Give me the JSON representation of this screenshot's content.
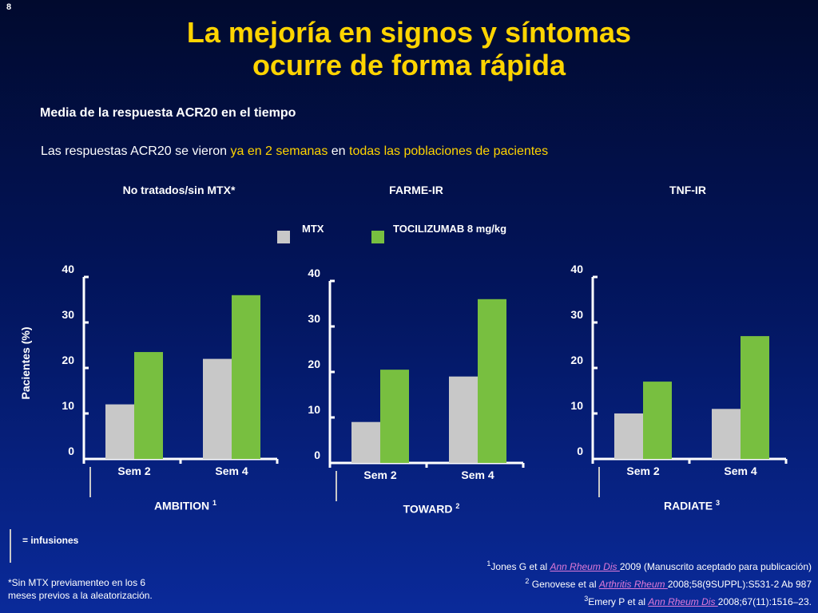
{
  "slide_number": "8",
  "title_line1": "La mejoría en signos y síntomas",
  "title_line2": "ocurre de forma rápida",
  "subtitle": "Media de la respuesta ACR20 en el tiempo",
  "note": {
    "part1": "Las respuestas ACR20 se vieron ",
    "part2": "ya en 2 semanas",
    "part3": " en ",
    "part4": "todas las poblaciones de pacientes"
  },
  "group_titles": [
    "No tratados/sin MTX*",
    "FARME-IR",
    "TNF-IR"
  ],
  "legend": [
    {
      "label": "MTX",
      "color": "#c8c8c8"
    },
    {
      "label": "TOCILIZUMAB 8 mg/kg",
      "color": "#78bf40"
    }
  ],
  "y_axis_label": "Pacientes (%)",
  "chart_data": [
    {
      "type": "bar",
      "study": "AMBITION",
      "study_sup": "1",
      "categories": [
        "Sem 2",
        "Sem 4"
      ],
      "series": [
        {
          "name": "MTX",
          "values": [
            12,
            22
          ],
          "color": "#c8c8c8"
        },
        {
          "name": "TOCILIZUMAB 8 mg/kg",
          "values": [
            23.5,
            36
          ],
          "color": "#78bf40"
        }
      ],
      "ylim": [
        0,
        40
      ],
      "yticks": [
        "0",
        "10",
        "20",
        "30",
        "40"
      ]
    },
    {
      "type": "bar",
      "study": "TOWARD",
      "study_sup": "2",
      "categories": [
        "Sem 2",
        "Sem 4"
      ],
      "series": [
        {
          "name": "MTX",
          "values": [
            9,
            19
          ],
          "color": "#c8c8c8"
        },
        {
          "name": "TOCILIZUMAB 8 mg/kg",
          "values": [
            20.5,
            36
          ],
          "color": "#78bf40"
        }
      ],
      "ylim": [
        0,
        40
      ],
      "yticks": [
        "0",
        "10",
        "20",
        "30",
        "40"
      ]
    },
    {
      "type": "bar",
      "study": "RADIATE",
      "study_sup": "3",
      "categories": [
        "Sem 2",
        "Sem 4"
      ],
      "series": [
        {
          "name": "MTX",
          "values": [
            10,
            11
          ],
          "color": "#c8c8c8"
        },
        {
          "name": "TOCILIZUMAB 8 mg/kg",
          "values": [
            17,
            27
          ],
          "color": "#78bf40"
        }
      ],
      "ylim": [
        0,
        40
      ],
      "yticks": [
        "0",
        "10",
        "20",
        "30",
        "40"
      ]
    }
  ],
  "infusion_label": "= infusiones",
  "footnote_line1": "*Sin MTX previamenteo en los 6",
  "footnote_line2": "meses previos a la aleatorización.",
  "references": [
    {
      "sup": "1",
      "pre": "Jones G et al ",
      "journal": "Ann Rheum Dis ",
      "post": "2009 (Manuscrito aceptado para publicación)"
    },
    {
      "sup": "2",
      "pre": " Genovese et al ",
      "journal": "Arthritis Rheum ",
      "post": "2008;58(9SUPPL):S531-2 Ab 987"
    },
    {
      "sup": "3",
      "pre": "Emery P et al ",
      "journal": "Ann Rheum Dis ",
      "post": "2008;67(11):1516–23."
    }
  ]
}
